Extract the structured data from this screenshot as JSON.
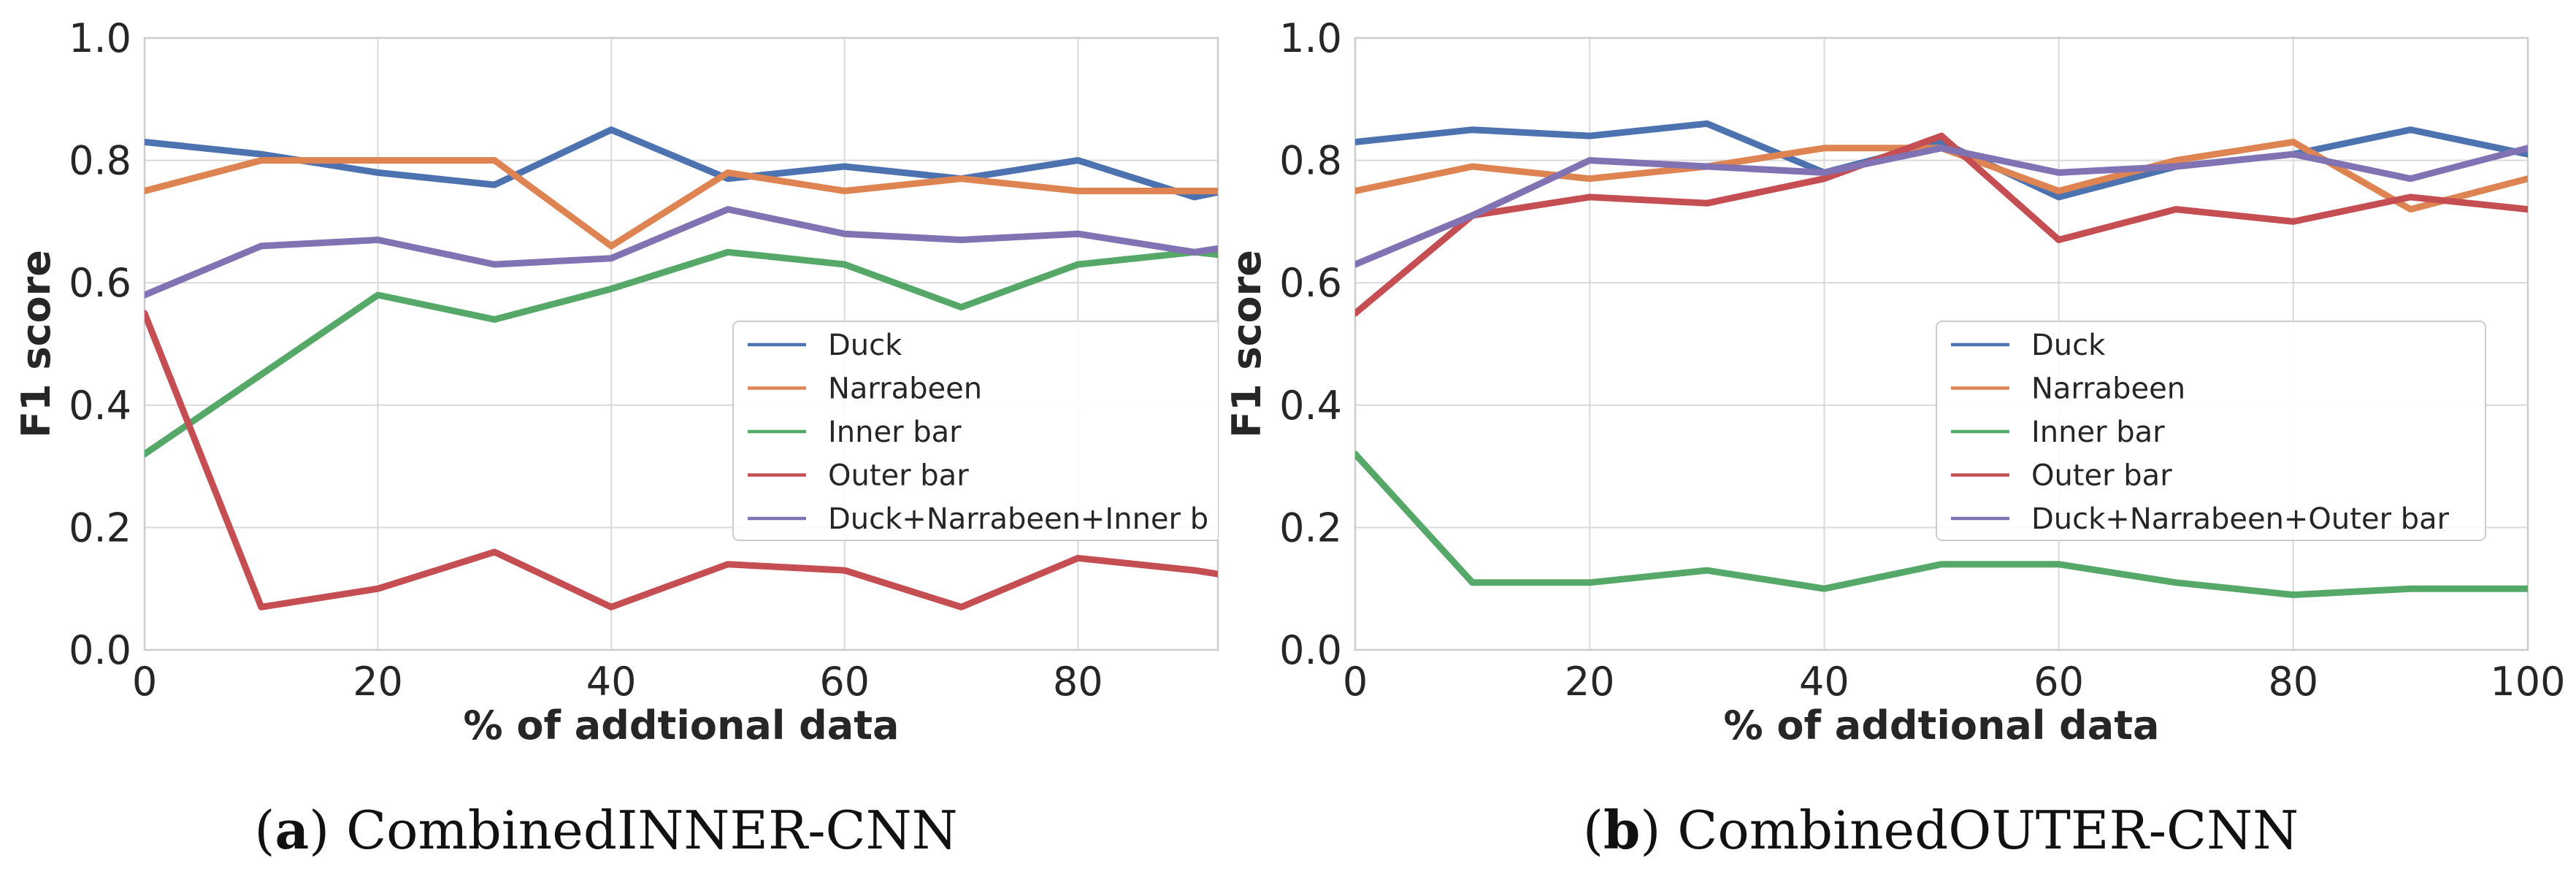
{
  "colors": {
    "Duck": "#4c72b0",
    "Narrabeen": "#dd8452",
    "Inner bar": "#55a868",
    "Outer bar": "#c44e52",
    "combined": "#8172b3",
    "grid": "#d9d9d9",
    "frame": "#cccccc"
  },
  "chart_data": [
    {
      "type": "line",
      "caption_letter": "a",
      "caption_text": "CombinedINNER-CNN",
      "xlabel": "% of addtional data",
      "ylabel": "F1 score",
      "xlim": [
        0,
        92
      ],
      "ylim": [
        0,
        1.0
      ],
      "xticks": [
        "0",
        "20",
        "40",
        "60",
        "80"
      ],
      "yticks": [
        "0.0",
        "0.2",
        "0.4",
        "0.6",
        "0.8",
        "1.0"
      ],
      "grid": true,
      "legend_position": "center-right",
      "x": [
        0,
        10,
        20,
        30,
        40,
        50,
        60,
        70,
        80,
        90,
        100
      ],
      "series": [
        {
          "name": "Duck",
          "color_key": "Duck",
          "values": [
            0.83,
            0.81,
            0.78,
            0.76,
            0.85,
            0.77,
            0.79,
            0.77,
            0.8,
            0.74,
            0.78
          ]
        },
        {
          "name": "Narrabeen",
          "color_key": "Narrabeen",
          "values": [
            0.75,
            0.8,
            0.8,
            0.8,
            0.66,
            0.78,
            0.75,
            0.77,
            0.75,
            0.75,
            0.75
          ]
        },
        {
          "name": "Inner bar",
          "color_key": "Inner bar",
          "values": [
            0.32,
            0.45,
            0.58,
            0.54,
            0.59,
            0.65,
            0.63,
            0.56,
            0.63,
            0.65,
            0.63
          ]
        },
        {
          "name": "Outer bar",
          "color_key": "Outer bar",
          "values": [
            0.55,
            0.07,
            0.1,
            0.16,
            0.07,
            0.14,
            0.13,
            0.07,
            0.15,
            0.13,
            0.1
          ]
        },
        {
          "name": "Duck+Narrabeen+Inner b",
          "color_key": "combined",
          "values": [
            0.58,
            0.66,
            0.67,
            0.63,
            0.64,
            0.72,
            0.68,
            0.67,
            0.68,
            0.65,
            0.68
          ]
        }
      ]
    },
    {
      "type": "line",
      "caption_letter": "b",
      "caption_text": "CombinedOUTER-CNN",
      "xlabel": "% of addtional data",
      "ylabel": "F1 score",
      "xlim": [
        0,
        100
      ],
      "ylim": [
        0,
        1.0
      ],
      "xticks": [
        "0",
        "20",
        "40",
        "60",
        "80",
        "100"
      ],
      "yticks": [
        "0.0",
        "0.2",
        "0.4",
        "0.6",
        "0.8",
        "1.0"
      ],
      "grid": true,
      "legend_position": "center-right",
      "x": [
        0,
        10,
        20,
        30,
        40,
        50,
        60,
        70,
        80,
        90,
        100
      ],
      "series": [
        {
          "name": "Duck",
          "color_key": "Duck",
          "values": [
            0.83,
            0.85,
            0.84,
            0.86,
            0.78,
            0.83,
            0.74,
            0.79,
            0.81,
            0.85,
            0.81
          ]
        },
        {
          "name": "Narrabeen",
          "color_key": "Narrabeen",
          "values": [
            0.75,
            0.79,
            0.77,
            0.79,
            0.82,
            0.82,
            0.75,
            0.8,
            0.83,
            0.72,
            0.77
          ]
        },
        {
          "name": "Inner bar",
          "color_key": "Inner bar",
          "values": [
            0.32,
            0.11,
            0.11,
            0.13,
            0.1,
            0.14,
            0.14,
            0.11,
            0.09,
            0.1,
            0.1
          ]
        },
        {
          "name": "Outer bar",
          "color_key": "Outer bar",
          "values": [
            0.55,
            0.71,
            0.74,
            0.73,
            0.77,
            0.84,
            0.67,
            0.72,
            0.7,
            0.74,
            0.72
          ]
        },
        {
          "name": "Duck+Narrabeen+Outer bar",
          "color_key": "combined",
          "values": [
            0.63,
            0.71,
            0.8,
            0.79,
            0.78,
            0.82,
            0.78,
            0.79,
            0.81,
            0.77,
            0.82
          ]
        }
      ]
    }
  ]
}
